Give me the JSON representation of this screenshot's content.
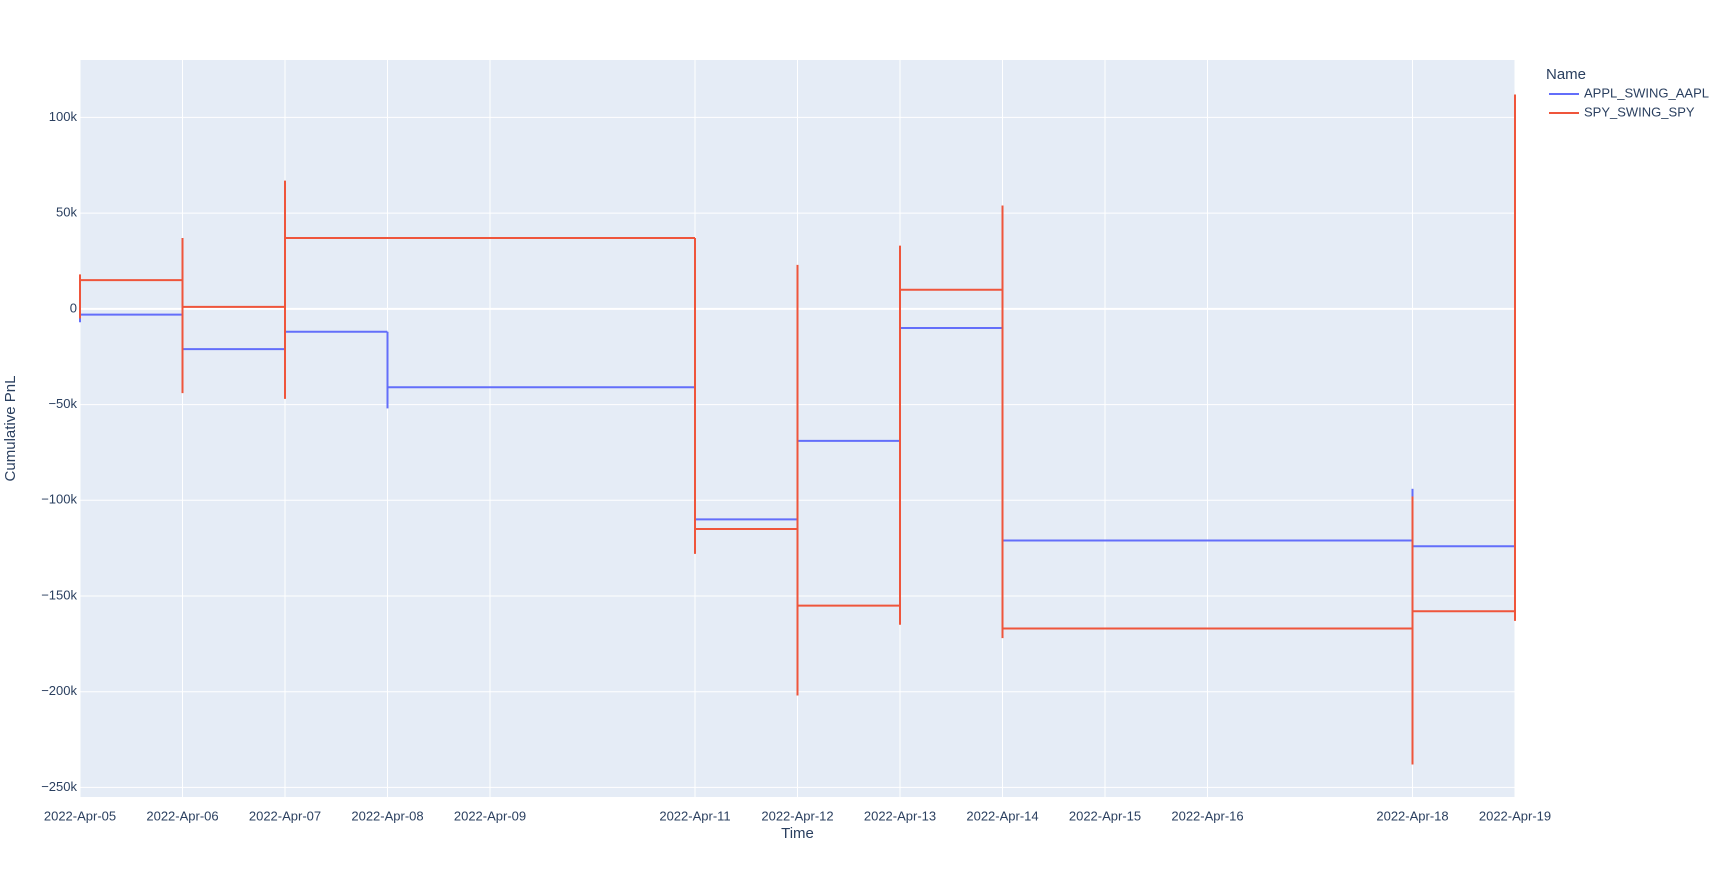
{
  "chart_data": {
    "type": "line",
    "xlabel": "Time",
    "ylabel": "Cumulative PnL",
    "legend_title": "Name",
    "legend_position": "top-right",
    "grid": true,
    "xlim": [
      "2022-04-05",
      "2022-04-19"
    ],
    "ylim": [
      -255000,
      130000
    ],
    "x_ticks": [
      "2022-Apr-05",
      "2022-Apr-06",
      "2022-Apr-07",
      "2022-Apr-08",
      "2022-Apr-09",
      "2022-Apr-11",
      "2022-Apr-12",
      "2022-Apr-13",
      "2022-Apr-14",
      "2022-Apr-15",
      "2022-Apr-16",
      "2022-Apr-18",
      "2022-Apr-19"
    ],
    "y_ticks": [
      {
        "value": 100000,
        "label": "100k"
      },
      {
        "value": 50000,
        "label": "50k"
      },
      {
        "value": 0,
        "label": "0"
      },
      {
        "value": -50000,
        "label": "−50k"
      },
      {
        "value": -100000,
        "label": "−100k"
      },
      {
        "value": -150000,
        "label": "−150k"
      },
      {
        "value": -200000,
        "label": "−200k"
      },
      {
        "value": -250000,
        "label": "−250k"
      }
    ],
    "series": [
      {
        "name": "APPL_SWING_AAPL",
        "color": "#636efa",
        "segments": [
          {
            "x": "2022-04-05",
            "y_range": [
              -7000,
              2000
            ]
          },
          {
            "x": "2022-04-05",
            "y": -3000
          },
          {
            "x": "2022-04-06",
            "y": -3000
          },
          {
            "x": "2022-04-06",
            "y_range": [
              -21000,
              -3000
            ]
          },
          {
            "x": "2022-04-06",
            "y": -21000
          },
          {
            "x": "2022-04-07",
            "y": -21000
          },
          {
            "x": "2022-04-07",
            "y_range": [
              -21000,
              -12000
            ]
          },
          {
            "x": "2022-04-07",
            "y": -12000
          },
          {
            "x": "2022-04-08",
            "y": -12000
          },
          {
            "x": "2022-04-08",
            "y_range": [
              -52000,
              -12000
            ]
          },
          {
            "x": "2022-04-08",
            "y": -41000
          },
          {
            "x": "2022-04-11",
            "y": -41000
          },
          {
            "x": "2022-04-11",
            "y_range": [
              -110000,
              -41000
            ]
          },
          {
            "x": "2022-04-11",
            "y": -110000
          },
          {
            "x": "2022-04-12",
            "y": -110000
          },
          {
            "x": "2022-04-12",
            "y_range": [
              -110000,
              -69000
            ]
          },
          {
            "x": "2022-04-12",
            "y": -69000
          },
          {
            "x": "2022-04-13",
            "y": -69000
          },
          {
            "x": "2022-04-13",
            "y_range": [
              -69000,
              -10000
            ]
          },
          {
            "x": "2022-04-13",
            "y": -10000
          },
          {
            "x": "2022-04-14",
            "y": -10000
          },
          {
            "x": "2022-04-14",
            "y_range": [
              -121000,
              -10000
            ]
          },
          {
            "x": "2022-04-14",
            "y": -121000
          },
          {
            "x": "2022-04-18",
            "y": -121000
          },
          {
            "x": "2022-04-18",
            "y_range": [
              -124000,
              -94000
            ]
          },
          {
            "x": "2022-04-18",
            "y": -124000
          },
          {
            "x": "2022-04-19",
            "y": -124000
          }
        ]
      },
      {
        "name": "SPY_SWING_SPY",
        "color": "#ef553b",
        "segments": [
          {
            "x": "2022-04-05",
            "y_range": [
              -5000,
              18000
            ]
          },
          {
            "x": "2022-04-05",
            "y": 15000
          },
          {
            "x": "2022-04-06",
            "y": 15000
          },
          {
            "x": "2022-04-06",
            "y_range": [
              -44000,
              37000
            ]
          },
          {
            "x": "2022-04-06",
            "y": 1000
          },
          {
            "x": "2022-04-07",
            "y": 1000
          },
          {
            "x": "2022-04-07",
            "y_range": [
              -47000,
              67000
            ]
          },
          {
            "x": "2022-04-07",
            "y": 37000
          },
          {
            "x": "2022-04-11",
            "y": 37000
          },
          {
            "x": "2022-04-11",
            "y_range": [
              -128000,
              37000
            ]
          },
          {
            "x": "2022-04-11",
            "y": -115000
          },
          {
            "x": "2022-04-12",
            "y": -115000
          },
          {
            "x": "2022-04-12",
            "y_range": [
              -202000,
              23000
            ]
          },
          {
            "x": "2022-04-12",
            "y": -155000
          },
          {
            "x": "2022-04-13",
            "y": -155000
          },
          {
            "x": "2022-04-13",
            "y_range": [
              -165000,
              33000
            ]
          },
          {
            "x": "2022-04-13",
            "y": 10000
          },
          {
            "x": "2022-04-14",
            "y": 10000
          },
          {
            "x": "2022-04-14",
            "y_range": [
              -172000,
              54000
            ]
          },
          {
            "x": "2022-04-14",
            "y": -167000
          },
          {
            "x": "2022-04-18",
            "y": -167000
          },
          {
            "x": "2022-04-18",
            "y_range": [
              -238000,
              -98000
            ]
          },
          {
            "x": "2022-04-18",
            "y": -158000
          },
          {
            "x": "2022-04-19",
            "y": -158000
          },
          {
            "x": "2022-04-19",
            "y_range": [
              -163000,
              112000
            ]
          }
        ]
      }
    ]
  }
}
